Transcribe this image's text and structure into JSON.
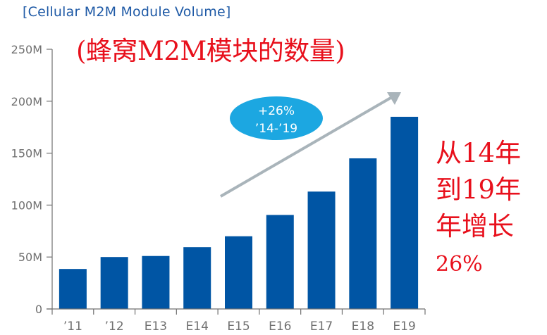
{
  "header": {
    "title": "[Cellular M2M Module Volume]",
    "cn_title": "(蜂窝M2M模块的数量)"
  },
  "annotation": {
    "bubble_line1": "+26%",
    "bubble_line2": "’14-’19",
    "cn_note_lines": [
      "从14年",
      "到19年",
      "年增长",
      "26%"
    ]
  },
  "colors": {
    "bar": "#0055a4",
    "title": "#1f5aa6",
    "bubble": "#1ca7e1",
    "arrow": "#a9b4ba",
    "annotation_red": "#e8101c",
    "axis": "#707070"
  },
  "chart_data": {
    "type": "bar",
    "title": "[Cellular M2M Module Volume]",
    "subtitle": "(蜂窝M2M模块的数量)",
    "xlabel": "",
    "ylabel": "",
    "categories": [
      "’11",
      "’12",
      "E13",
      "E14",
      "E15",
      "E16",
      "E17",
      "E18",
      "E19"
    ],
    "values": [
      38.5,
      50,
      51,
      59.5,
      70,
      90.5,
      113,
      145,
      185
    ],
    "unit": "M",
    "ylim": [
      0,
      250
    ],
    "yticks": [
      "0",
      "50M",
      "100M",
      "150M",
      "200M",
      "250M"
    ],
    "grid": false,
    "legend": null,
    "annotations": [
      "+26% ’14-’19",
      "从14年到19年年增长26%"
    ]
  }
}
